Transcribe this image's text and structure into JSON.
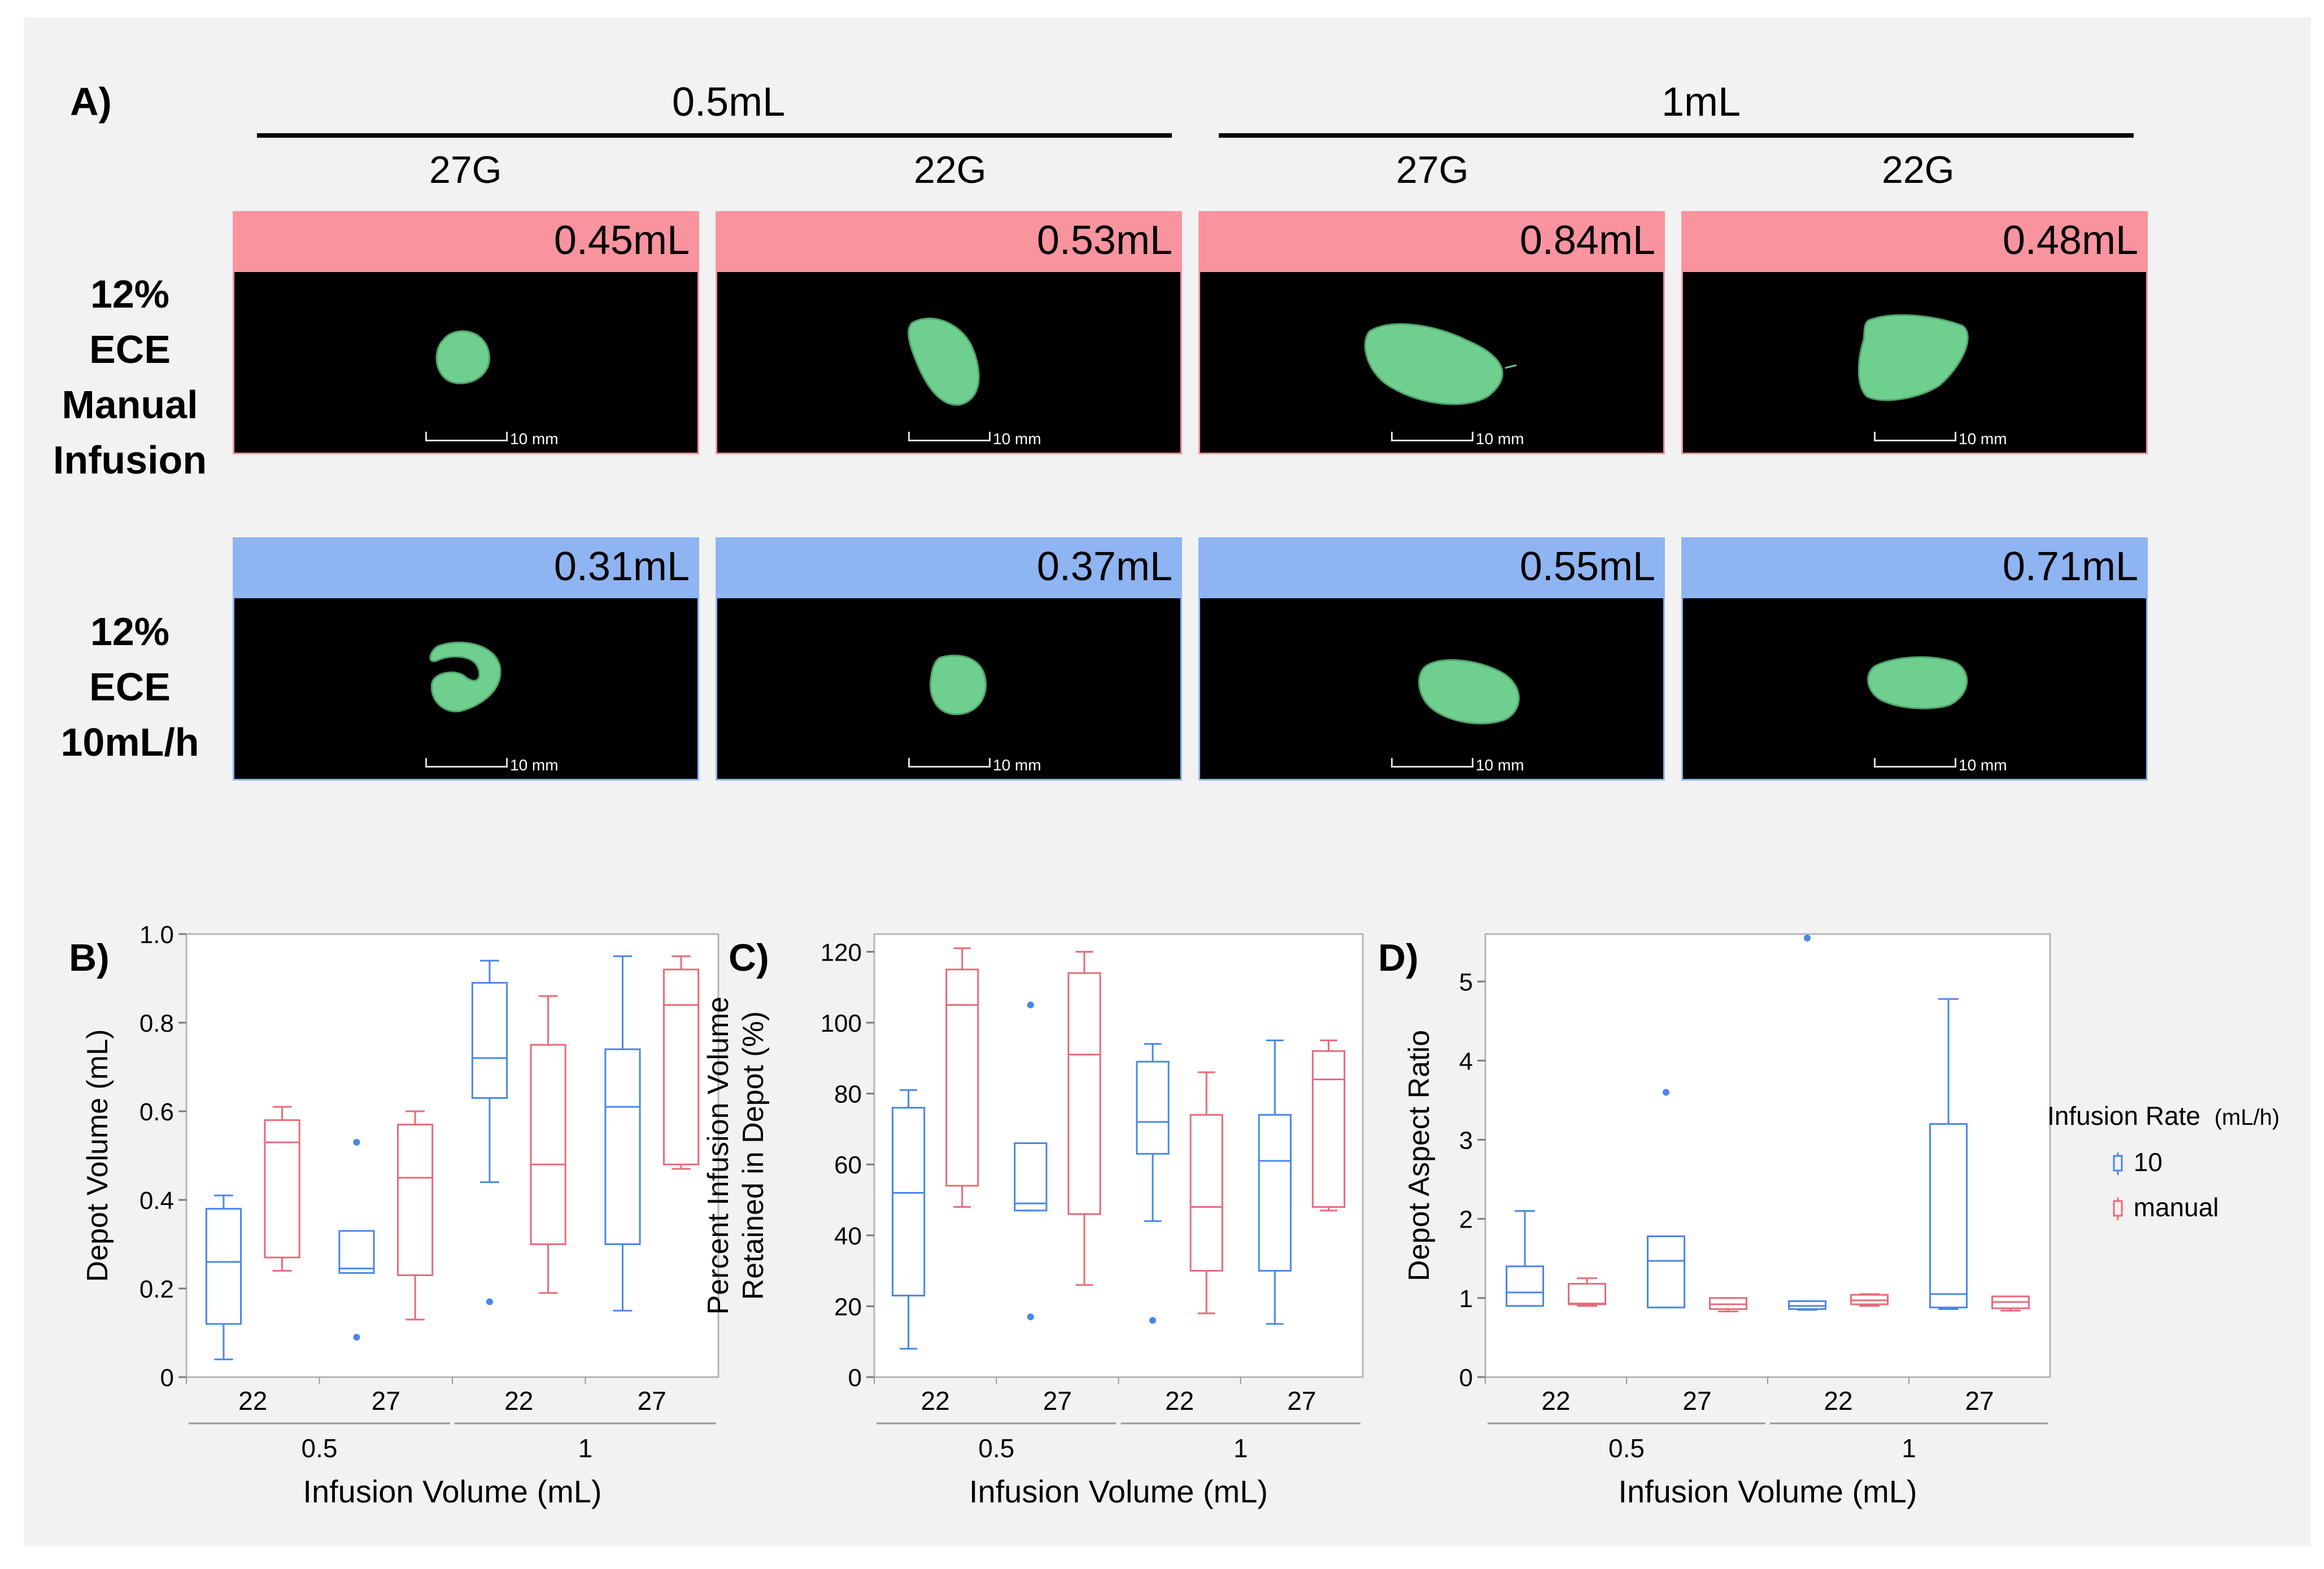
{
  "panel_a": {
    "label": "A)",
    "volume_headers": [
      "0.5mL",
      "1mL"
    ],
    "gauge_headers": [
      "27G",
      "22G",
      "27G",
      "22G"
    ],
    "rows": [
      {
        "label_lines": [
          "12% ECE",
          "Manual",
          "Infusion"
        ],
        "volumes": [
          "0.45mL",
          "0.53mL",
          "0.84mL",
          "0.48mL"
        ],
        "color": "#f9949f"
      },
      {
        "label_lines": [
          "12% ECE",
          "10mL/h"
        ],
        "volumes": [
          "0.31mL",
          "0.37mL",
          "0.55mL",
          "0.71mL"
        ],
        "color": "#8fb4f2"
      }
    ],
    "scale_label": "10 mm",
    "depot_color": "#6fcf8f"
  },
  "legend": {
    "title": "Infusion Rate",
    "unit": "(mL/h)",
    "items": [
      {
        "name": "10",
        "color": "#4a86e8"
      },
      {
        "name": "manual",
        "color": "#e86a78"
      }
    ]
  },
  "chart_data": [
    {
      "type": "box",
      "panel_label": "B)",
      "ylabel": "Depot Volume (mL)",
      "ylabel_lines": [
        "Depot Volume (mL)"
      ],
      "xlabel": "Infusion Volume (mL)",
      "ylim": [
        0,
        1.0
      ],
      "yticks": [
        0,
        0.2,
        0.4,
        0.6,
        0.8,
        1.0
      ],
      "ytick_labels": [
        "0",
        "0.2",
        "0.4",
        "0.6",
        "0.8",
        "1.0"
      ],
      "groups": [
        {
          "outer": "0.5",
          "inner": [
            "22",
            "27"
          ]
        },
        {
          "outer": "1",
          "inner": [
            "22",
            "27"
          ]
        }
      ],
      "boxes": [
        {
          "x": 0,
          "series": "10",
          "min": 0.04,
          "q1": 0.12,
          "median": 0.26,
          "q3": 0.38,
          "max": 0.41,
          "outliers": []
        },
        {
          "x": 0,
          "series": "manual",
          "min": 0.24,
          "q1": 0.27,
          "median": 0.53,
          "q3": 0.58,
          "max": 0.61,
          "outliers": []
        },
        {
          "x": 1,
          "series": "10",
          "min": 0.235,
          "q1": 0.235,
          "median": 0.245,
          "q3": 0.33,
          "max": 0.33,
          "outliers": [
            0.09,
            0.53
          ]
        },
        {
          "x": 1,
          "series": "manual",
          "min": 0.13,
          "q1": 0.23,
          "median": 0.45,
          "q3": 0.57,
          "max": 0.6,
          "outliers": []
        },
        {
          "x": 2,
          "series": "10",
          "min": 0.44,
          "q1": 0.63,
          "median": 0.72,
          "q3": 0.89,
          "max": 0.94,
          "outliers": [
            0.17
          ]
        },
        {
          "x": 2,
          "series": "manual",
          "min": 0.19,
          "q1": 0.3,
          "median": 0.48,
          "q3": 0.75,
          "max": 0.86,
          "outliers": []
        },
        {
          "x": 3,
          "series": "10",
          "min": 0.15,
          "q1": 0.3,
          "median": 0.61,
          "q3": 0.74,
          "max": 0.95,
          "outliers": []
        },
        {
          "x": 3,
          "series": "manual",
          "min": 0.47,
          "q1": 0.48,
          "median": 0.84,
          "q3": 0.92,
          "max": 0.95,
          "outliers": []
        }
      ]
    },
    {
      "type": "box",
      "panel_label": "C)",
      "ylabel": "Percent Infusion Volume Retained in Depot (%)",
      "ylabel_lines": [
        "Percent Infusion Volume",
        "Retained in Depot (%)"
      ],
      "xlabel": "Infusion Volume (mL)",
      "ylim": [
        0,
        125
      ],
      "yticks": [
        0,
        20,
        40,
        60,
        80,
        100,
        120
      ],
      "ytick_labels": [
        "0",
        "20",
        "40",
        "60",
        "80",
        "100",
        "120"
      ],
      "groups": [
        {
          "outer": "0.5",
          "inner": [
            "22",
            "27"
          ]
        },
        {
          "outer": "1",
          "inner": [
            "22",
            "27"
          ]
        }
      ],
      "boxes": [
        {
          "x": 0,
          "series": "10",
          "min": 8,
          "q1": 23,
          "median": 52,
          "q3": 76,
          "max": 81,
          "outliers": []
        },
        {
          "x": 0,
          "series": "manual",
          "min": 48,
          "q1": 54,
          "median": 105,
          "q3": 115,
          "max": 121,
          "outliers": []
        },
        {
          "x": 1,
          "series": "10",
          "min": 47,
          "q1": 47,
          "median": 49,
          "q3": 66,
          "max": 66,
          "outliers": [
            17,
            105
          ]
        },
        {
          "x": 1,
          "series": "manual",
          "min": 26,
          "q1": 46,
          "median": 91,
          "q3": 114,
          "max": 120,
          "outliers": []
        },
        {
          "x": 2,
          "series": "10",
          "min": 44,
          "q1": 63,
          "median": 72,
          "q3": 89,
          "max": 94,
          "outliers": [
            16
          ]
        },
        {
          "x": 2,
          "series": "manual",
          "min": 18,
          "q1": 30,
          "median": 48,
          "q3": 74,
          "max": 86,
          "outliers": []
        },
        {
          "x": 3,
          "series": "10",
          "min": 15,
          "q1": 30,
          "median": 61,
          "q3": 74,
          "max": 95,
          "outliers": []
        },
        {
          "x": 3,
          "series": "manual",
          "min": 47,
          "q1": 48,
          "median": 84,
          "q3": 92,
          "max": 95,
          "outliers": []
        }
      ]
    },
    {
      "type": "box",
      "panel_label": "D)",
      "ylabel": "Depot Aspect Ratio",
      "ylabel_lines": [
        "Depot Aspect Ratio"
      ],
      "xlabel": "Infusion Volume (mL)",
      "ylim": [
        0,
        5.6
      ],
      "yticks": [
        0,
        1,
        2,
        3,
        4,
        5
      ],
      "ytick_labels": [
        "0",
        "1",
        "2",
        "3",
        "4",
        "5"
      ],
      "groups": [
        {
          "outer": "0.5",
          "inner": [
            "22",
            "27"
          ]
        },
        {
          "outer": "1",
          "inner": [
            "22",
            "27"
          ]
        }
      ],
      "boxes": [
        {
          "x": 0,
          "series": "10",
          "min": 0.9,
          "q1": 0.9,
          "median": 1.07,
          "q3": 1.4,
          "max": 2.1,
          "outliers": []
        },
        {
          "x": 0,
          "series": "manual",
          "min": 0.9,
          "q1": 0.92,
          "median": 0.93,
          "q3": 1.18,
          "max": 1.25,
          "outliers": []
        },
        {
          "x": 1,
          "series": "10",
          "min": 0.88,
          "q1": 0.88,
          "median": 1.47,
          "q3": 1.78,
          "max": 1.78,
          "outliers": [
            3.6
          ]
        },
        {
          "x": 1,
          "series": "manual",
          "min": 0.83,
          "q1": 0.86,
          "median": 0.92,
          "q3": 1.0,
          "max": 1.0,
          "outliers": []
        },
        {
          "x": 2,
          "series": "10",
          "min": 0.85,
          "q1": 0.86,
          "median": 0.9,
          "q3": 0.96,
          "max": 0.96,
          "outliers": [
            5.55
          ]
        },
        {
          "x": 2,
          "series": "manual",
          "min": 0.9,
          "q1": 0.92,
          "median": 0.97,
          "q3": 1.04,
          "max": 1.05,
          "outliers": []
        },
        {
          "x": 3,
          "series": "10",
          "min": 0.86,
          "q1": 0.88,
          "median": 1.05,
          "q3": 3.2,
          "max": 4.78,
          "outliers": []
        },
        {
          "x": 3,
          "series": "manual",
          "min": 0.84,
          "q1": 0.87,
          "median": 0.95,
          "q3": 1.02,
          "max": 1.02,
          "outliers": []
        }
      ]
    }
  ]
}
